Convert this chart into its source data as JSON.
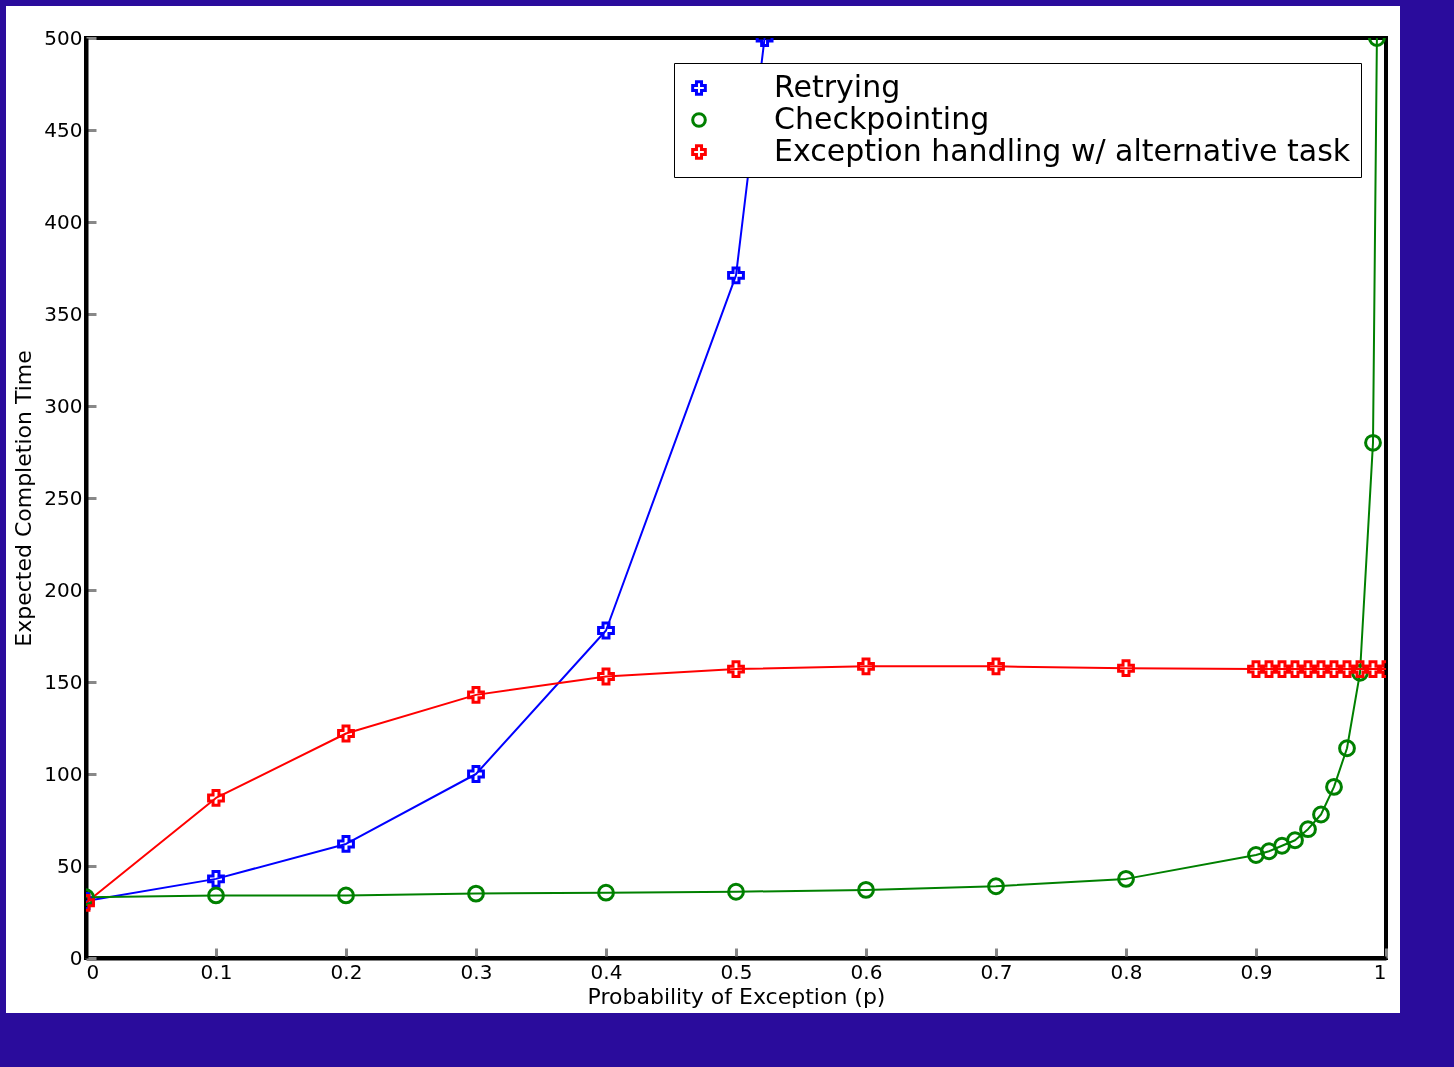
{
  "chart_data": {
    "type": "line",
    "xlabel": "Probability of Exception (p)",
    "ylabel": "Expected Completion Time",
    "xlim": [
      0,
      1
    ],
    "ylim": [
      0,
      500
    ],
    "xticks": [
      0,
      0.1,
      0.2,
      0.3,
      0.4,
      0.5,
      0.6,
      0.7,
      0.8,
      0.9,
      1
    ],
    "yticks": [
      0,
      50,
      100,
      150,
      200,
      250,
      300,
      350,
      400,
      450,
      500
    ],
    "grid": false,
    "legend": "top right",
    "line_style": "solid",
    "series": [
      {
        "name": "Retrying",
        "color": "#0000ff",
        "marker": "cross",
        "x": [
          0,
          0.1,
          0.2,
          0.3,
          0.4,
          0.5,
          0.522
        ],
        "values": [
          31,
          43,
          62,
          100,
          178,
          371,
          500
        ]
      },
      {
        "name": "Checkpointing",
        "color": "#008000",
        "marker": "circle",
        "x": [
          0,
          0.1,
          0.2,
          0.3,
          0.4,
          0.5,
          0.6,
          0.7,
          0.8,
          0.9,
          0.91,
          0.92,
          0.93,
          0.94,
          0.95,
          0.96,
          0.97,
          0.98,
          0.99,
          0.993
        ],
        "values": [
          33,
          34,
          34,
          35,
          35.5,
          36,
          37,
          39,
          43,
          56,
          58,
          61,
          64,
          70,
          78,
          93,
          114,
          155,
          280,
          500
        ]
      },
      {
        "name": "Exception handling w/ alternative task",
        "color": "#ff0000",
        "marker": "cross",
        "x": [
          0,
          0.1,
          0.2,
          0.3,
          0.4,
          0.5,
          0.6,
          0.7,
          0.8,
          0.9,
          0.91,
          0.92,
          0.93,
          0.94,
          0.95,
          0.96,
          0.97,
          0.98,
          0.99,
          1
        ],
        "values": [
          30,
          87,
          122,
          143,
          153,
          157,
          158.5,
          158.5,
          157.5,
          157,
          157,
          157,
          157,
          157,
          157,
          157,
          157,
          157,
          157,
          157
        ]
      }
    ]
  }
}
